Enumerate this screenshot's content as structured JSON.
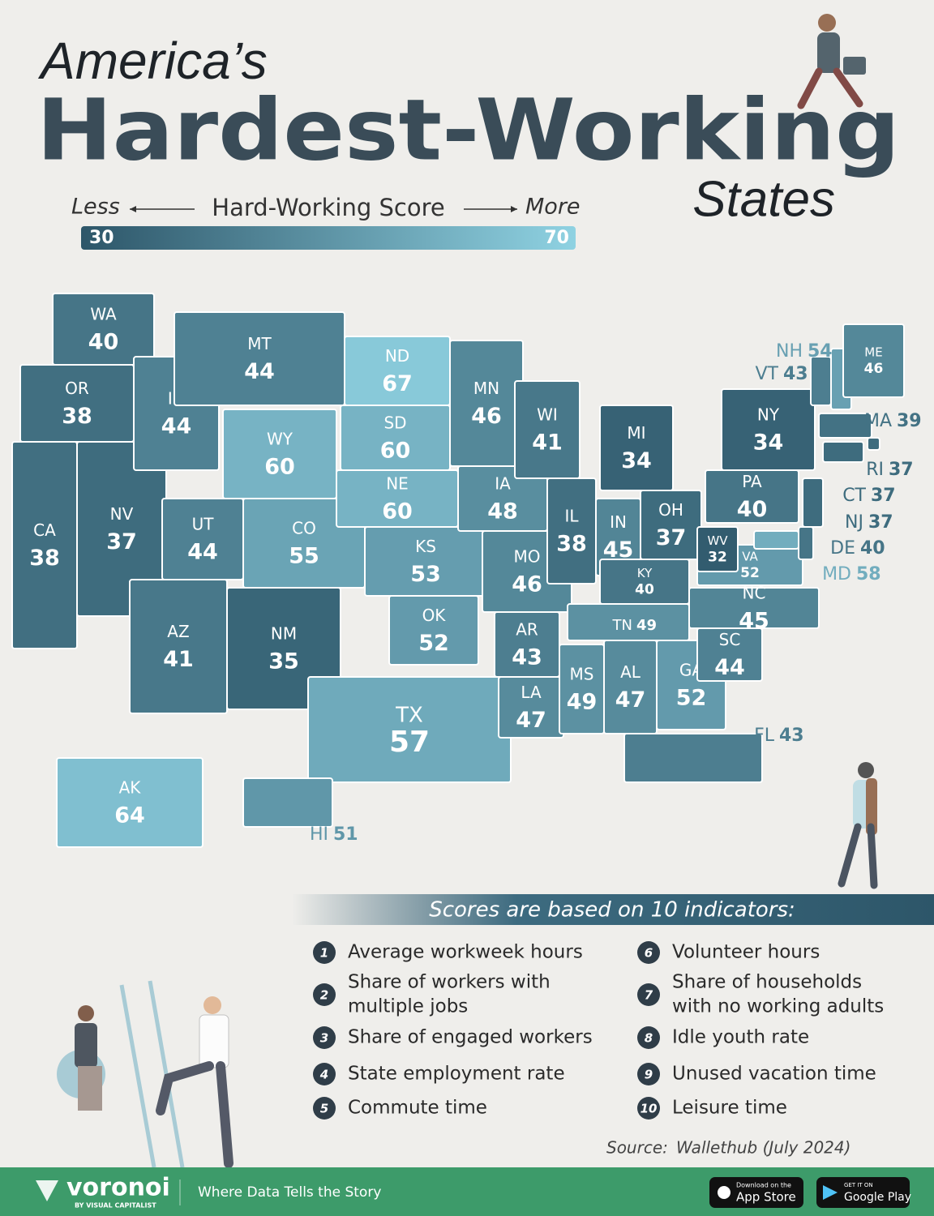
{
  "header": {
    "line1": "America’s",
    "main": "Hardest-Working",
    "line3": "States"
  },
  "chart_data": {
    "type": "choropleth",
    "legend": {
      "title": "Hard-Working Score",
      "less": "Less",
      "more": "More"
    },
    "range": [
      30,
      70
    ],
    "colors": [
      "#2d5669",
      "#8fd2e2"
    ],
    "states": [
      {
        "code": "WA",
        "value": 40
      },
      {
        "code": "OR",
        "value": 38
      },
      {
        "code": "CA",
        "value": 38
      },
      {
        "code": "NV",
        "value": 37
      },
      {
        "code": "ID",
        "value": 44
      },
      {
        "code": "MT",
        "value": 44
      },
      {
        "code": "WY",
        "value": 60
      },
      {
        "code": "UT",
        "value": 44
      },
      {
        "code": "CO",
        "value": 55
      },
      {
        "code": "AZ",
        "value": 41
      },
      {
        "code": "NM",
        "value": 35
      },
      {
        "code": "ND",
        "value": 67
      },
      {
        "code": "SD",
        "value": 60
      },
      {
        "code": "NE",
        "value": 60
      },
      {
        "code": "KS",
        "value": 53
      },
      {
        "code": "OK",
        "value": 52
      },
      {
        "code": "TX",
        "value": 57
      },
      {
        "code": "MN",
        "value": 46
      },
      {
        "code": "IA",
        "value": 48
      },
      {
        "code": "MO",
        "value": 46
      },
      {
        "code": "AR",
        "value": 43
      },
      {
        "code": "LA",
        "value": 47
      },
      {
        "code": "WI",
        "value": 41
      },
      {
        "code": "IL",
        "value": 38
      },
      {
        "code": "MI",
        "value": 34
      },
      {
        "code": "IN",
        "value": 45
      },
      {
        "code": "OH",
        "value": 37
      },
      {
        "code": "KY",
        "value": 40
      },
      {
        "code": "TN",
        "value": 49
      },
      {
        "code": "MS",
        "value": 49
      },
      {
        "code": "AL",
        "value": 47
      },
      {
        "code": "GA",
        "value": 52
      },
      {
        "code": "FL",
        "value": 43
      },
      {
        "code": "SC",
        "value": 44
      },
      {
        "code": "NC",
        "value": 45
      },
      {
        "code": "VA",
        "value": 52
      },
      {
        "code": "WV",
        "value": 32
      },
      {
        "code": "PA",
        "value": 40
      },
      {
        "code": "NY",
        "value": 34
      },
      {
        "code": "VT",
        "value": 43
      },
      {
        "code": "NH",
        "value": 54
      },
      {
        "code": "ME",
        "value": 46
      },
      {
        "code": "MA",
        "value": 39
      },
      {
        "code": "RI",
        "value": 37
      },
      {
        "code": "CT",
        "value": 37
      },
      {
        "code": "NJ",
        "value": 37
      },
      {
        "code": "DE",
        "value": 40
      },
      {
        "code": "MD",
        "value": 58
      },
      {
        "code": "AK",
        "value": 64
      },
      {
        "code": "HI",
        "value": 51
      }
    ]
  },
  "indicators": {
    "title": "Scores are based on 10 indicators:",
    "items": [
      {
        "number": 1,
        "lines": [
          "Average workweek hours"
        ]
      },
      {
        "number": 2,
        "lines": [
          "Share of workers with",
          "multiple jobs"
        ]
      },
      {
        "number": 3,
        "lines": [
          "Share of engaged workers"
        ]
      },
      {
        "number": 4,
        "lines": [
          "State employment rate"
        ]
      },
      {
        "number": 5,
        "lines": [
          "Commute time"
        ]
      },
      {
        "number": 6,
        "lines": [
          "Volunteer hours"
        ]
      },
      {
        "number": 7,
        "lines": [
          "Share of households",
          "with no working adults"
        ]
      },
      {
        "number": 8,
        "lines": [
          "Idle youth rate"
        ]
      },
      {
        "number": 9,
        "lines": [
          "Unused vacation time"
        ]
      },
      {
        "number": 10,
        "lines": [
          "Leisure time"
        ]
      }
    ]
  },
  "source": {
    "label": "Source:",
    "text": "Wallethub (July 2024)"
  },
  "footer": {
    "brand": "voronoi",
    "byline": "BY VISUAL CAPITALIST",
    "tagline": "Where Data Tells the Story",
    "app_store": {
      "small": "Download on the",
      "big": "App Store"
    },
    "google_play": {
      "small": "GET IT ON",
      "big": "Google Play"
    }
  }
}
